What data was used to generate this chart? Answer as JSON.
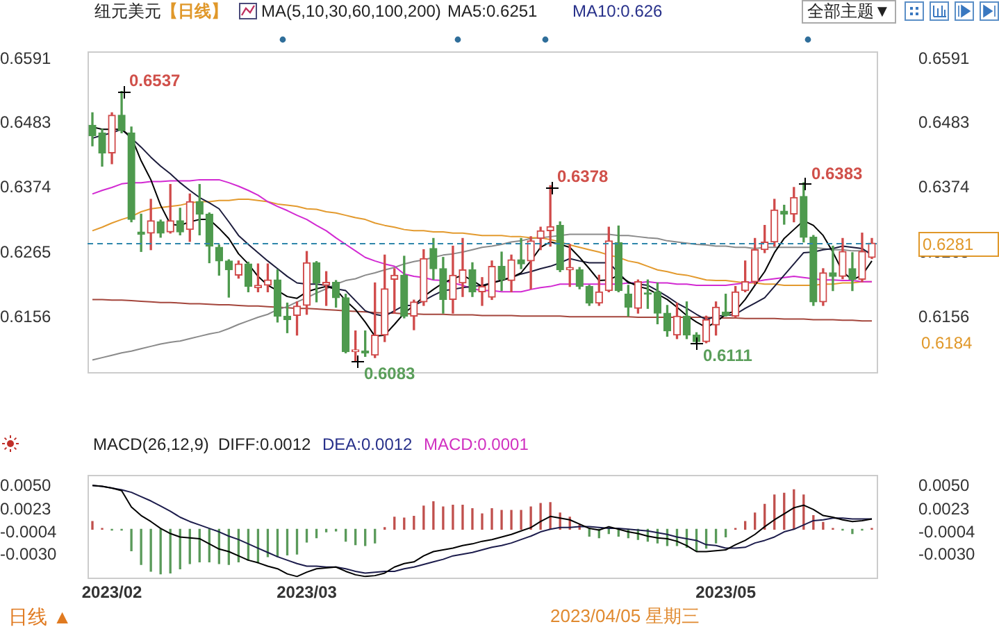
{
  "chart_data": [
    {
      "type": "candlestick",
      "title": "纽元美元",
      "subtitle": "【日线】",
      "categories": [
        null,
        null,
        "2023/02",
        null,
        null,
        null,
        null,
        null,
        null,
        null,
        null,
        null,
        null,
        null,
        null,
        null,
        null,
        null,
        null,
        null,
        null,
        null,
        "2023/03",
        null,
        null,
        null,
        null,
        null,
        null,
        null,
        null,
        null,
        null,
        null,
        null,
        null,
        null,
        null,
        null,
        null,
        null,
        null,
        null,
        null,
        null,
        null,
        null,
        null,
        null,
        null,
        null,
        null,
        null,
        null,
        null,
        null,
        null,
        null,
        null,
        null,
        null,
        null,
        null,
        null,
        null,
        "2023/05",
        null,
        null,
        null,
        null,
        null,
        null,
        null,
        null,
        null,
        null,
        null,
        null,
        null,
        null,
        null
      ],
      "ohlc": [
        [
          0.648,
          0.6501,
          0.6445,
          0.6462
        ],
        [
          0.6467,
          0.6473,
          0.6411,
          0.6433
        ],
        [
          0.6433,
          0.6501,
          0.6415,
          0.6497
        ],
        [
          0.6497,
          0.6537,
          0.6467,
          0.6471
        ],
        [
          0.6467,
          0.6477,
          0.6317,
          0.6321
        ],
        [
          0.63,
          0.633,
          0.6267,
          0.6296
        ],
        [
          0.6298,
          0.6355,
          0.627,
          0.6319
        ],
        [
          0.6317,
          0.632,
          0.6291,
          0.6298
        ],
        [
          0.63,
          0.638,
          0.6298,
          0.6319
        ],
        [
          0.6319,
          0.634,
          0.6295,
          0.63
        ],
        [
          0.6304,
          0.6364,
          0.6284,
          0.6351
        ],
        [
          0.6351,
          0.638,
          0.6295,
          0.633
        ],
        [
          0.633,
          0.6332,
          0.6248,
          0.6276
        ],
        [
          0.6274,
          0.6278,
          0.6227,
          0.6251
        ],
        [
          0.6251,
          0.6253,
          0.619,
          0.6236
        ],
        [
          0.6227,
          0.6251,
          0.6222,
          0.6246
        ],
        [
          0.6246,
          0.6249,
          0.6199,
          0.6208
        ],
        [
          0.6206,
          0.6246,
          0.6199,
          0.621
        ],
        [
          0.621,
          0.6246,
          0.6199,
          0.6219
        ],
        [
          0.6219,
          0.6236,
          0.6148,
          0.6158
        ],
        [
          0.6158,
          0.618,
          0.613,
          0.6152
        ],
        [
          0.6159,
          0.6182,
          0.6126,
          0.6175
        ],
        [
          0.6176,
          0.6267,
          0.6161,
          0.6248
        ],
        [
          0.6248,
          0.625,
          0.6182,
          0.6214
        ],
        [
          0.621,
          0.6233,
          0.6176,
          0.6215
        ],
        [
          0.6215,
          0.6218,
          0.6173,
          0.6189
        ],
        [
          0.6189,
          0.6195,
          0.6096,
          0.6098
        ],
        [
          0.6098,
          0.6133,
          0.6083,
          0.6101
        ],
        [
          0.6099,
          0.6133,
          0.609,
          0.6096
        ],
        [
          0.6092,
          0.6214,
          0.6088,
          0.6126
        ],
        [
          0.6126,
          0.6261,
          0.6115,
          0.6204
        ],
        [
          0.622,
          0.6238,
          0.6163,
          0.6227
        ],
        [
          0.6227,
          0.6259,
          0.6155,
          0.6158
        ],
        [
          0.6158,
          0.6185,
          0.6135,
          0.6182
        ],
        [
          0.6182,
          0.627,
          0.6176,
          0.6255
        ],
        [
          0.6272,
          0.6289,
          0.622,
          0.6238
        ],
        [
          0.6238,
          0.6257,
          0.6163,
          0.6186
        ],
        [
          0.6186,
          0.6276,
          0.6163,
          0.6227
        ],
        [
          0.6214,
          0.6289,
          0.6191,
          0.6236
        ],
        [
          0.6236,
          0.6248,
          0.6191,
          0.6199
        ],
        [
          0.6199,
          0.6223,
          0.6176,
          0.6208
        ],
        [
          0.619,
          0.6251,
          0.6186,
          0.6242
        ],
        [
          0.6242,
          0.6266,
          0.6201,
          0.622
        ],
        [
          0.6218,
          0.6261,
          0.6199,
          0.6253
        ],
        [
          0.6253,
          0.6289,
          0.6238,
          0.6246
        ],
        [
          0.6251,
          0.6292,
          0.6204,
          0.6285
        ],
        [
          0.6289,
          0.6308,
          0.627,
          0.6302
        ],
        [
          0.6302,
          0.6378,
          0.6276,
          0.6309
        ],
        [
          0.6311,
          0.6317,
          0.6233,
          0.6236
        ],
        [
          0.6236,
          0.6279,
          0.6208,
          0.624
        ],
        [
          0.6236,
          0.624,
          0.6204,
          0.6208
        ],
        [
          0.6208,
          0.621,
          0.6176,
          0.618
        ],
        [
          0.618,
          0.6227,
          0.6176,
          0.6199
        ],
        [
          0.6201,
          0.6308,
          0.6199,
          0.6285
        ],
        [
          0.6282,
          0.631,
          0.6199,
          0.6201
        ],
        [
          0.6195,
          0.621,
          0.6158,
          0.6173
        ],
        [
          0.6171,
          0.6219,
          0.6163,
          0.6216
        ],
        [
          0.6197,
          0.6219,
          0.6171,
          0.6195
        ],
        [
          0.6199,
          0.6214,
          0.6145,
          0.6163
        ],
        [
          0.6163,
          0.6176,
          0.6124,
          0.6133
        ],
        [
          0.6126,
          0.618,
          0.612,
          0.6158
        ],
        [
          0.6158,
          0.6182,
          0.612,
          0.6126
        ],
        [
          0.6126,
          0.613,
          0.6111,
          0.6115
        ],
        [
          0.6115,
          0.6158,
          0.6113,
          0.6152
        ],
        [
          0.6143,
          0.6182,
          0.6126,
          0.6173
        ],
        [
          0.6165,
          0.6195,
          0.6158,
          0.6159
        ],
        [
          0.6158,
          0.6208,
          0.6156,
          0.6199
        ],
        [
          0.6201,
          0.6251,
          0.6199,
          0.6216
        ],
        [
          0.6216,
          0.6289,
          0.6212,
          0.627
        ],
        [
          0.627,
          0.6311,
          0.6265,
          0.6283
        ],
        [
          0.6283,
          0.6355,
          0.6276,
          0.6337
        ],
        [
          0.6335,
          0.6345,
          0.6313,
          0.633
        ],
        [
          0.633,
          0.6375,
          0.6317,
          0.6358
        ],
        [
          0.636,
          0.6383,
          0.6283,
          0.6291
        ],
        [
          0.6291,
          0.6294,
          0.6176,
          0.6182
        ],
        [
          0.6182,
          0.6238,
          0.6176,
          0.6231
        ],
        [
          0.6231,
          0.6276,
          0.6201,
          0.6225
        ],
        [
          0.6225,
          0.6289,
          0.6221,
          0.6267
        ],
        [
          0.6238,
          0.6265,
          0.6201,
          0.622
        ],
        [
          0.622,
          0.6298,
          0.6216,
          0.6267
        ],
        [
          0.6257,
          0.6289,
          0.6255,
          0.6281
        ]
      ],
      "colors": [
        "#4e9a4e",
        "#4e9a4e",
        "#d04a4a",
        "#4e9a4e",
        "#4e9a4e",
        "#4e9a4e",
        "#d04a4a",
        "#4e9a4e",
        "#d04a4a",
        "#4e9a4e",
        "#d04a4a",
        "#4e9a4e",
        "#4e9a4e",
        "#4e9a4e",
        "#4e9a4e",
        "#d04a4a",
        "#4e9a4e",
        "#d04a4a",
        "#d04a4a",
        "#4e9a4e",
        "#4e9a4e",
        "#d04a4a",
        "#d04a4a",
        "#4e9a4e",
        "#d04a4a",
        "#4e9a4e",
        "#4e9a4e",
        "#d04a4a",
        "#4e9a4e",
        "#d04a4a",
        "#d04a4a",
        "#d04a4a",
        "#4e9a4e",
        "#d04a4a",
        "#d04a4a",
        "#4e9a4e",
        "#4e9a4e",
        "#d04a4a",
        "#d04a4a",
        "#4e9a4e",
        "#d04a4a",
        "#d04a4a",
        "#4e9a4e",
        "#d04a4a",
        "#4e9a4e",
        "#d04a4a",
        "#d04a4a",
        "#d04a4a",
        "#4e9a4e",
        "#d04a4a",
        "#4e9a4e",
        "#4e9a4e",
        "#d04a4a",
        "#d04a4a",
        "#4e9a4e",
        "#4e9a4e",
        "#d04a4a",
        "#4e9a4e",
        "#4e9a4e",
        "#4e9a4e",
        "#d04a4a",
        "#4e9a4e",
        "#4e9a4e",
        "#d04a4a",
        "#d04a4a",
        "#4e9a4e",
        "#d04a4a",
        "#d04a4a",
        "#d04a4a",
        "#d04a4a",
        "#d04a4a",
        "#4e9a4e",
        "#d04a4a",
        "#4e9a4e",
        "#4e9a4e",
        "#d04a4a",
        "#4e9a4e",
        "#d04a4a",
        "#4e9a4e",
        "#d04a4a",
        "#d04a4a"
      ],
      "series": [
        {
          "type": "line",
          "color": "#000000",
          "values": [
            0.6477,
            0.6473,
            0.6473,
            0.6473,
            0.646,
            0.642,
            0.6388,
            0.6345,
            0.6313,
            0.6311,
            0.6317,
            0.6321,
            0.6321,
            0.6306,
            0.6289,
            0.6263,
            0.6246,
            0.6225,
            0.621,
            0.6201,
            0.6191,
            0.6188,
            0.6199,
            0.6204,
            0.6208,
            0.6203,
            0.6184,
            0.6169,
            0.6148,
            0.6124,
            0.6126,
            0.6144,
            0.6163,
            0.6176,
            0.6191,
            0.6203,
            0.6214,
            0.6221,
            0.6227,
            0.6218,
            0.6208,
            0.6214,
            0.6218,
            0.6223,
            0.6231,
            0.6251,
            0.6274,
            0.6283,
            0.6279,
            0.6274,
            0.6257,
            0.6238,
            0.6218,
            0.6219,
            0.6227,
            0.6216,
            0.6208,
            0.6204,
            0.6195,
            0.6186,
            0.6173,
            0.6159,
            0.6148,
            0.6139,
            0.6148,
            0.6161,
            0.6167,
            0.6186,
            0.621,
            0.6233,
            0.6265,
            0.6289,
            0.6304,
            0.6319,
            0.6311,
            0.6294,
            0.6266,
            0.6233,
            0.6219,
            0.6227,
            0.6251
          ]
        },
        {
          "type": "line",
          "color": "#1c1c3c",
          "values": [
            0.6458,
            0.6463,
            0.6467,
            0.6473,
            0.6458,
            0.6443,
            0.6426,
            0.6411,
            0.6398,
            0.6383,
            0.637,
            0.6358,
            0.6349,
            0.6339,
            0.6317,
            0.6294,
            0.6279,
            0.6265,
            0.6251,
            0.6238,
            0.6225,
            0.6214,
            0.6212,
            0.6212,
            0.621,
            0.6204,
            0.6201,
            0.6184,
            0.6167,
            0.6161,
            0.6158,
            0.6167,
            0.6176,
            0.6176,
            0.6184,
            0.6193,
            0.6201,
            0.6203,
            0.6206,
            0.6208,
            0.621,
            0.6214,
            0.6219,
            0.6223,
            0.6229,
            0.6233,
            0.6238,
            0.6242,
            0.6248,
            0.6255,
            0.6251,
            0.6248,
            0.6248,
            0.6248,
            0.6231,
            0.6214,
            0.6212,
            0.621,
            0.6201,
            0.6191,
            0.618,
            0.6171,
            0.6161,
            0.6152,
            0.6158,
            0.6159,
            0.6161,
            0.6171,
            0.618,
            0.6189,
            0.6208,
            0.6227,
            0.6246,
            0.6265,
            0.6266,
            0.627,
            0.6272,
            0.6276,
            0.6274,
            0.6272,
            0.6261
          ]
        },
        {
          "type": "line",
          "color": "#d22ad2",
          "values": [
            0.6364,
            0.637,
            0.6375,
            0.6381,
            0.6383,
            0.6383,
            0.6385,
            0.6385,
            0.6386,
            0.6386,
            0.6386,
            0.6388,
            0.6388,
            0.6388,
            0.6383,
            0.6377,
            0.637,
            0.6362,
            0.6351,
            0.6343,
            0.6336,
            0.6328,
            0.6321,
            0.6311,
            0.6302,
            0.629,
            0.6279,
            0.6268,
            0.6257,
            0.6251,
            0.6246,
            0.6242,
            0.6229,
            0.6225,
            0.6223,
            0.6219,
            0.6218,
            0.6214,
            0.621,
            0.6204,
            0.6201,
            0.6201,
            0.6199,
            0.6199,
            0.6199,
            0.6203,
            0.6206,
            0.6208,
            0.6212,
            0.6212,
            0.6212,
            0.6212,
            0.6212,
            0.6212,
            0.6212,
            0.6214,
            0.6214,
            0.6216,
            0.6214,
            0.6214,
            0.6212,
            0.6212,
            0.621,
            0.621,
            0.621,
            0.621,
            0.6212,
            0.6214,
            0.6216,
            0.6219,
            0.6221,
            0.6223,
            0.6225,
            0.6223,
            0.6221,
            0.6219,
            0.6219,
            0.6218,
            0.6218,
            0.6216,
            0.6216
          ]
        },
        {
          "type": "line",
          "color": "#e39a2e",
          "values": [
            0.6302,
            0.6308,
            0.6315,
            0.6321,
            0.6326,
            0.6334,
            0.6339,
            0.6341,
            0.6343,
            0.6345,
            0.6349,
            0.6351,
            0.6351,
            0.6353,
            0.6353,
            0.6355,
            0.6355,
            0.6353,
            0.6351,
            0.6347,
            0.6345,
            0.6343,
            0.6339,
            0.6338,
            0.6334,
            0.6332,
            0.6328,
            0.6324,
            0.6321,
            0.6315,
            0.6311,
            0.6308,
            0.6304,
            0.6302,
            0.6302,
            0.63,
            0.63,
            0.6298,
            0.6298,
            0.6296,
            0.6294,
            0.6294,
            0.6294,
            0.6292,
            0.6292,
            0.629,
            0.629,
            0.6287,
            0.6283,
            0.6278,
            0.6274,
            0.627,
            0.6266,
            0.6261,
            0.6257,
            0.6251,
            0.6248,
            0.6242,
            0.6236,
            0.6233,
            0.6229,
            0.6227,
            0.6223,
            0.6219,
            0.6218,
            0.6218,
            0.6216,
            0.6214,
            0.6214,
            0.6212,
            0.6212,
            0.621,
            0.621,
            0.621,
            0.621,
            0.6212,
            0.6212,
            0.6214,
            0.6214,
            0.6216,
            0.6216
          ]
        },
        {
          "type": "line",
          "color": "#8a8a8a",
          "values": [
            0.6084,
            0.6088,
            0.6092,
            0.6096,
            0.6099,
            0.6103,
            0.6107,
            0.6111,
            0.6114,
            0.6116,
            0.612,
            0.6124,
            0.6128,
            0.6131,
            0.6137,
            0.6144,
            0.615,
            0.6156,
            0.6161,
            0.6169,
            0.6174,
            0.6182,
            0.6189,
            0.6197,
            0.6204,
            0.6212,
            0.6218,
            0.6221,
            0.6227,
            0.6231,
            0.6236,
            0.624,
            0.6246,
            0.625,
            0.6253,
            0.6257,
            0.6261,
            0.6263,
            0.6266,
            0.627,
            0.6274,
            0.6276,
            0.6279,
            0.6283,
            0.6285,
            0.6289,
            0.629,
            0.6292,
            0.6294,
            0.6296,
            0.6296,
            0.6296,
            0.6296,
            0.6296,
            0.6294,
            0.6294,
            0.6292,
            0.629,
            0.6289,
            0.6285,
            0.6283,
            0.6281,
            0.6279,
            0.6278,
            0.6276,
            0.6276,
            0.6274,
            0.6274,
            0.6272,
            0.6274,
            0.6274,
            0.6274,
            0.6274,
            0.6274,
            0.6274,
            0.6272,
            0.627,
            0.627,
            0.6268,
            0.6268,
            0.6266
          ]
        },
        {
          "type": "line",
          "color": "#a4463c",
          "values": [
            0.6186,
            0.6186,
            0.6185,
            0.6185,
            0.6184,
            0.6183,
            0.6182,
            0.6181,
            0.6181,
            0.618,
            0.6179,
            0.6179,
            0.6178,
            0.6177,
            0.6177,
            0.6176,
            0.6175,
            0.6175,
            0.6174,
            0.6173,
            0.6172,
            0.6171,
            0.6171,
            0.617,
            0.6169,
            0.6168,
            0.6167,
            0.6166,
            0.6165,
            0.6164,
            0.6163,
            0.6163,
            0.6162,
            0.6162,
            0.6161,
            0.6161,
            0.6161,
            0.616,
            0.616,
            0.616,
            0.6159,
            0.6159,
            0.6159,
            0.6159,
            0.6158,
            0.6158,
            0.6158,
            0.6158,
            0.6158,
            0.6157,
            0.6157,
            0.6157,
            0.6157,
            0.6157,
            0.6157,
            0.6157,
            0.6156,
            0.6156,
            0.6156,
            0.6156,
            0.6156,
            0.6156,
            0.6156,
            0.6156,
            0.6155,
            0.6155,
            0.6155,
            0.6154,
            0.6154,
            0.6154,
            0.6154,
            0.6153,
            0.6153,
            0.6153,
            0.6152,
            0.6152,
            0.6152,
            0.6151,
            0.6151,
            0.615,
            0.615
          ]
        }
      ],
      "ylim": [
        0.6064,
        0.6604
      ],
      "yticks": [
        0.6591,
        0.6483,
        0.6374,
        0.6265,
        0.6156
      ],
      "y2lim": [
        0.6064,
        0.6604
      ],
      "y2ticks": [
        0.6591,
        0.6483,
        0.6374,
        0.6265,
        0.6156
      ],
      "tick_labels": "y",
      "ref_lines": [
        {
          "axis": "y",
          "value": 0.6281,
          "label": "0.6281",
          "color": "#2e86ab",
          "line_style": "dashed"
        }
      ],
      "annotations": [
        "MA(5,10,30,60,100,200)",
        "MA5:0.6251",
        "MA10:0.626",
        "全部主题▼",
        "0.6184",
        "0.6537",
        "0.6083",
        "0.6378",
        "0.6111",
        "0.6383"
      ]
    },
    {
      "type": "bar",
      "title": "MACD(26,12,9)",
      "categories": [
        null,
        null,
        "2023/02",
        null,
        null,
        null,
        null,
        null,
        null,
        null,
        null,
        null,
        null,
        null,
        null,
        null,
        null,
        null,
        null,
        null,
        null,
        null,
        "2023/03",
        null,
        null,
        null,
        null,
        null,
        null,
        null,
        null,
        null,
        null,
        null,
        null,
        null,
        null,
        null,
        null,
        null,
        null,
        null,
        null,
        null,
        null,
        null,
        null,
        null,
        null,
        null,
        null,
        null,
        null,
        null,
        null,
        null,
        null,
        null,
        null,
        null,
        null,
        null,
        null,
        null,
        null,
        "2023/05",
        null,
        null,
        null,
        null,
        null,
        null,
        null,
        null,
        null,
        null,
        null,
        null,
        null,
        null,
        null
      ],
      "series": [
        {
          "type": "bar",
          "values": [
            0.0009,
            0.0001,
            -0.0001,
            -0.0001,
            -0.0025,
            -0.0041,
            -0.0049,
            -0.0052,
            -0.0051,
            -0.0046,
            -0.004,
            -0.0038,
            -0.0038,
            -0.004,
            -0.0041,
            -0.0038,
            -0.0036,
            -0.0039,
            -0.0032,
            -0.0032,
            -0.003,
            -0.0029,
            -0.0015,
            -0.001,
            -0.0003,
            -0.0002,
            -0.0014,
            -0.0018,
            -0.0019,
            -0.0016,
            0.0002,
            0.0014,
            0.0013,
            0.0015,
            0.0027,
            0.0032,
            0.0026,
            0.0028,
            0.0028,
            0.0024,
            0.0018,
            0.0024,
            0.0022,
            0.0022,
            0.0022,
            0.0026,
            0.003,
            0.0031,
            0.0019,
            0.0014,
            0.0005,
            -0.0008,
            -0.001,
            -0.0005,
            -0.0008,
            -0.001,
            -0.0012,
            -0.0014,
            -0.0016,
            -0.0019,
            -0.0019,
            -0.0021,
            -0.0025,
            -0.0022,
            -0.0016,
            -0.0009,
            0.0001,
            0.0009,
            0.0019,
            0.0029,
            0.004,
            0.0042,
            0.0046,
            0.004,
            0.0016,
            0.0008,
            0.0001,
            -0.0001,
            -0.0005,
            -0.0001,
            0.0001
          ],
          "colors": [
            "#c0504d",
            "#c0504d",
            "#5a9a5a",
            "#5a9a5a",
            "#5a9a5a",
            "#5a9a5a",
            "#5a9a5a",
            "#5a9a5a",
            "#5a9a5a",
            "#5a9a5a",
            "#5a9a5a",
            "#5a9a5a",
            "#5a9a5a",
            "#5a9a5a",
            "#5a9a5a",
            "#5a9a5a",
            "#5a9a5a",
            "#5a9a5a",
            "#5a9a5a",
            "#5a9a5a",
            "#5a9a5a",
            "#5a9a5a",
            "#5a9a5a",
            "#5a9a5a",
            "#5a9a5a",
            "#5a9a5a",
            "#5a9a5a",
            "#5a9a5a",
            "#5a9a5a",
            "#5a9a5a",
            "#c0504d",
            "#c0504d",
            "#c0504d",
            "#c0504d",
            "#c0504d",
            "#c0504d",
            "#c0504d",
            "#c0504d",
            "#c0504d",
            "#c0504d",
            "#c0504d",
            "#c0504d",
            "#c0504d",
            "#c0504d",
            "#c0504d",
            "#c0504d",
            "#c0504d",
            "#c0504d",
            "#c0504d",
            "#c0504d",
            "#c0504d",
            "#5a9a5a",
            "#5a9a5a",
            "#5a9a5a",
            "#5a9a5a",
            "#5a9a5a",
            "#5a9a5a",
            "#5a9a5a",
            "#5a9a5a",
            "#5a9a5a",
            "#5a9a5a",
            "#5a9a5a",
            "#5a9a5a",
            "#5a9a5a",
            "#5a9a5a",
            "#5a9a5a",
            "#c0504d",
            "#c0504d",
            "#c0504d",
            "#c0504d",
            "#c0504d",
            "#c0504d",
            "#c0504d",
            "#c0504d",
            "#c0504d",
            "#c0504d",
            "#c0504d",
            "#5a9a5a",
            "#5a9a5a",
            "#5a9a5a",
            "#c0504d"
          ]
        },
        {
          "type": "line",
          "color": "#000000",
          "values": [
            0.0051,
            0.005,
            0.0048,
            0.0045,
            0.0026,
            0.0016,
            0.0009,
            0.0001,
            -0.0005,
            -0.0009,
            -0.001,
            -0.0011,
            -0.0017,
            -0.0023,
            -0.0026,
            -0.0031,
            -0.0036,
            -0.0039,
            -0.0043,
            -0.0046,
            -0.0052,
            -0.0055,
            -0.005,
            -0.0046,
            -0.0045,
            -0.0044,
            -0.0049,
            -0.0053,
            -0.0055,
            -0.0054,
            -0.0051,
            -0.0044,
            -0.004,
            -0.0038,
            -0.0031,
            -0.0026,
            -0.0024,
            -0.0022,
            -0.0019,
            -0.0017,
            -0.0014,
            -0.0012,
            -0.0009,
            -0.0006,
            -0.0002,
            0.0002,
            0.0009,
            0.0015,
            0.0013,
            0.0011,
            0.0006,
            0.0001,
            -0.0001,
            0.0003,
            0.0,
            -0.0003,
            -0.0005,
            -0.0008,
            -0.001,
            -0.0011,
            -0.0014,
            -0.0019,
            -0.0026,
            -0.0026,
            -0.0025,
            -0.0024,
            -0.0018,
            -0.0013,
            -0.0006,
            0.0003,
            0.0011,
            0.0018,
            0.0025,
            0.0028,
            0.0023,
            0.0016,
            0.0014,
            0.0011,
            0.0009,
            0.001,
            0.0012
          ]
        },
        {
          "type": "line",
          "color": "#1c1c4c",
          "values": [
            0.0051,
            0.005,
            0.0048,
            0.0046,
            0.0043,
            0.0038,
            0.0033,
            0.0027,
            0.0021,
            0.0014,
            0.0009,
            0.0005,
            0.0001,
            -0.0003,
            -0.0008,
            -0.0012,
            -0.0017,
            -0.0022,
            -0.0027,
            -0.0032,
            -0.0036,
            -0.004,
            -0.0043,
            -0.0043,
            -0.0044,
            -0.0044,
            -0.0046,
            -0.0049,
            -0.0051,
            -0.005,
            -0.0049,
            -0.0049,
            -0.0046,
            -0.0044,
            -0.0041,
            -0.0038,
            -0.0035,
            -0.0031,
            -0.0029,
            -0.0027,
            -0.0024,
            -0.0021,
            -0.0019,
            -0.0016,
            -0.0012,
            -0.0008,
            -0.0003,
            0.0,
            0.0002,
            0.0002,
            0.0003,
            0.0003,
            0.0002,
            0.0001,
            0.0001,
            0.0,
            -0.0001,
            -0.0002,
            -0.0004,
            -0.0006,
            -0.0009,
            -0.0011,
            -0.0013,
            -0.0018,
            -0.0019,
            -0.0022,
            -0.0022,
            -0.0021,
            -0.0016,
            -0.0013,
            -0.0009,
            -0.0003,
            0.0,
            0.0005,
            0.001,
            0.0011,
            0.0013,
            0.0013,
            0.0012,
            0.0012,
            0.0012
          ]
        }
      ],
      "ylim": [
        -0.0056,
        0.0063
      ],
      "yticks": [
        {
          "value": 0.005,
          "label": "0.0050"
        },
        0.0023,
        -0.0004,
        {
          "value": -0.003,
          "label": "-0.0030"
        }
      ],
      "y2lim": [
        -0.0056,
        0.0063
      ],
      "y2ticks": [
        {
          "value": 0.005,
          "label": "0.0050"
        },
        0.0023,
        -0.0004,
        {
          "value": -0.003,
          "label": "-0.0030"
        }
      ],
      "annotations": [
        "DIFF:0.0012",
        "DEA:0.0012",
        "MACD:0.0001",
        "日线 ▲",
        "2023/04/05 星期三"
      ]
    }
  ]
}
